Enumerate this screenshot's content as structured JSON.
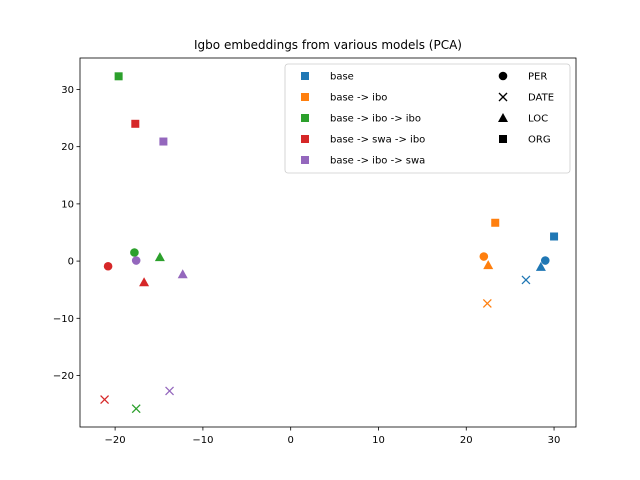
{
  "chart_data": {
    "type": "scatter",
    "title": "Igbo embeddings from various models (PCA)",
    "xlabel": "",
    "ylabel": "",
    "xlim": [
      -24,
      32.5
    ],
    "ylim": [
      -29,
      35.5
    ],
    "xticks": [
      -20,
      -10,
      0,
      10,
      20,
      30
    ],
    "yticks": [
      -20,
      -10,
      0,
      10,
      20,
      30
    ],
    "xtick_labels": [
      "−20",
      "−10",
      "0",
      "10",
      "20",
      "30"
    ],
    "ytick_labels": [
      "−20",
      "−10",
      "0",
      "10",
      "20",
      "30"
    ],
    "grid": false,
    "legend_placement": "top-right",
    "series": [
      {
        "name": "base",
        "color": "#1f77b4",
        "points": [
          {
            "x": 29.0,
            "y": 0.1,
            "marker": "circle"
          },
          {
            "x": 26.8,
            "y": -3.3,
            "marker": "x"
          },
          {
            "x": 28.5,
            "y": -1.0,
            "marker": "triangle"
          },
          {
            "x": 30.0,
            "y": 4.3,
            "marker": "square"
          }
        ]
      },
      {
        "name": "base -> ibo",
        "color": "#ff7f0e",
        "points": [
          {
            "x": 22.0,
            "y": 0.8,
            "marker": "circle"
          },
          {
            "x": 22.4,
            "y": -7.4,
            "marker": "x"
          },
          {
            "x": 22.5,
            "y": -0.7,
            "marker": "triangle"
          },
          {
            "x": 23.3,
            "y": 6.7,
            "marker": "square"
          }
        ]
      },
      {
        "name": "base -> ibo -> ibo",
        "color": "#2ca02c",
        "points": [
          {
            "x": -17.8,
            "y": 1.5,
            "marker": "circle"
          },
          {
            "x": -17.6,
            "y": -25.8,
            "marker": "x"
          },
          {
            "x": -14.9,
            "y": 0.7,
            "marker": "triangle"
          },
          {
            "x": -19.6,
            "y": 32.3,
            "marker": "square"
          }
        ]
      },
      {
        "name": "base -> swa -> ibo",
        "color": "#d62728",
        "points": [
          {
            "x": -20.8,
            "y": -0.9,
            "marker": "circle"
          },
          {
            "x": -21.2,
            "y": -24.2,
            "marker": "x"
          },
          {
            "x": -16.7,
            "y": -3.7,
            "marker": "triangle"
          },
          {
            "x": -17.7,
            "y": 24.0,
            "marker": "square"
          }
        ]
      },
      {
        "name": "base -> ibo -> swa",
        "color": "#9467bd",
        "points": [
          {
            "x": -17.6,
            "y": 0.1,
            "marker": "circle"
          },
          {
            "x": -13.8,
            "y": -22.7,
            "marker": "x"
          },
          {
            "x": -12.3,
            "y": -2.3,
            "marker": "triangle"
          },
          {
            "x": -14.5,
            "y": 20.9,
            "marker": "square"
          }
        ]
      }
    ],
    "marker_legend": [
      {
        "name": "PER",
        "marker": "circle"
      },
      {
        "name": "DATE",
        "marker": "x"
      },
      {
        "name": "LOC",
        "marker": "triangle"
      },
      {
        "name": "ORG",
        "marker": "square"
      }
    ]
  }
}
